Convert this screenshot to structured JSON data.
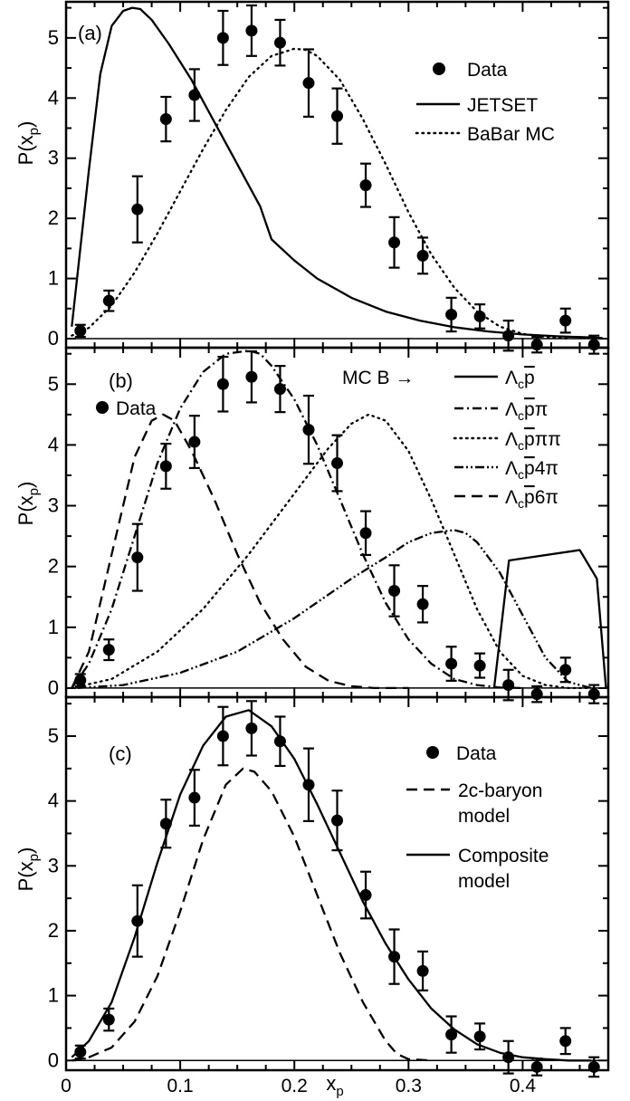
{
  "chart_data": [
    {
      "panel": "(a)",
      "type": "scatter",
      "ylabel": "P(x_p)",
      "xlim": [
        0,
        0.475
      ],
      "ylim": [
        -0.15,
        5.6
      ],
      "yticks": [
        "0",
        "1",
        "2",
        "3",
        "4",
        "5"
      ],
      "data": {
        "name": "Data",
        "x": [
          0.0125,
          0.0375,
          0.0625,
          0.0875,
          0.1125,
          0.1375,
          0.1625,
          0.1875,
          0.2125,
          0.2375,
          0.2625,
          0.2875,
          0.3125,
          0.3375,
          0.3625,
          0.3875,
          0.4125,
          0.4375,
          0.4625
        ],
        "y": [
          0.13,
          0.63,
          2.15,
          3.65,
          4.05,
          5.0,
          5.12,
          4.92,
          4.25,
          3.7,
          2.55,
          1.6,
          1.38,
          0.4,
          0.37,
          0.05,
          -0.1,
          0.3,
          -0.1
        ],
        "err": [
          0.1,
          0.17,
          0.55,
          0.37,
          0.43,
          0.45,
          0.42,
          0.38,
          0.56,
          0.46,
          0.36,
          0.42,
          0.3,
          0.28,
          0.2,
          0.25,
          0.13,
          0.2,
          0.15
        ]
      },
      "series": [
        {
          "name": "JETSET",
          "style": "solid",
          "x": [
            0.005,
            0.02,
            0.03,
            0.04,
            0.05,
            0.058,
            0.065,
            0.075,
            0.09,
            0.11,
            0.13,
            0.15,
            0.17,
            0.18,
            0.2,
            0.22,
            0.25,
            0.28,
            0.31,
            0.34,
            0.37,
            0.4,
            0.43,
            0.46,
            0.47
          ],
          "y": [
            0.2,
            2.8,
            4.4,
            5.2,
            5.45,
            5.5,
            5.48,
            5.3,
            4.9,
            4.3,
            3.6,
            2.9,
            2.2,
            1.65,
            1.3,
            1.0,
            0.68,
            0.45,
            0.3,
            0.19,
            0.12,
            0.07,
            0.04,
            0.02,
            0.01
          ]
        },
        {
          "name": "BaBar MC",
          "style": "dotted",
          "x": [
            0.005,
            0.02,
            0.04,
            0.06,
            0.08,
            0.1,
            0.12,
            0.14,
            0.16,
            0.18,
            0.2,
            0.21,
            0.22,
            0.24,
            0.26,
            0.28,
            0.3,
            0.32,
            0.34,
            0.36,
            0.38,
            0.4,
            0.42,
            0.44
          ],
          "y": [
            0.05,
            0.18,
            0.55,
            1.1,
            1.75,
            2.45,
            3.15,
            3.8,
            4.35,
            4.7,
            4.82,
            4.8,
            4.7,
            4.3,
            3.65,
            2.9,
            2.1,
            1.4,
            0.85,
            0.45,
            0.2,
            0.08,
            0.03,
            0.0
          ]
        }
      ]
    },
    {
      "panel": "(b)",
      "type": "scatter",
      "ylabel": "P(x_p)",
      "xlim": [
        0,
        0.475
      ],
      "ylim": [
        -0.15,
        5.6
      ],
      "yticks": [
        "0",
        "1",
        "2",
        "3",
        "4",
        "5"
      ],
      "legend_header": "MC B →",
      "data": {
        "name": "Data",
        "x": [
          0.0125,
          0.0375,
          0.0625,
          0.0875,
          0.1125,
          0.1375,
          0.1625,
          0.1875,
          0.2125,
          0.2375,
          0.2625,
          0.2875,
          0.3125,
          0.3375,
          0.3625,
          0.3875,
          0.4125,
          0.4375,
          0.4625
        ],
        "y": [
          0.13,
          0.63,
          2.15,
          3.65,
          4.05,
          5.0,
          5.12,
          4.92,
          4.25,
          3.7,
          2.55,
          1.6,
          1.38,
          0.4,
          0.37,
          0.05,
          -0.1,
          0.3,
          -0.1
        ],
        "err": [
          0.1,
          0.17,
          0.55,
          0.37,
          0.43,
          0.45,
          0.42,
          0.38,
          0.56,
          0.46,
          0.36,
          0.42,
          0.3,
          0.28,
          0.2,
          0.25,
          0.13,
          0.2,
          0.15
        ]
      },
      "series": [
        {
          "name": "Λc p̅",
          "style": "solid",
          "x": [
            0.375,
            0.388,
            0.45,
            0.465,
            0.473
          ],
          "y": [
            0.0,
            2.1,
            2.27,
            1.8,
            0.0
          ]
        },
        {
          "name": "Λc p̅π",
          "style": "dashdot",
          "x": [
            0.005,
            0.02,
            0.04,
            0.06,
            0.08,
            0.1,
            0.12,
            0.14,
            0.16,
            0.17,
            0.18,
            0.2,
            0.22,
            0.24,
            0.26,
            0.28,
            0.3,
            0.32,
            0.34,
            0.36,
            0.38,
            0.4
          ],
          "y": [
            0.0,
            0.4,
            1.3,
            2.5,
            3.7,
            4.6,
            5.2,
            5.5,
            5.55,
            5.5,
            5.3,
            4.75,
            4.0,
            3.1,
            2.2,
            1.4,
            0.8,
            0.4,
            0.15,
            0.05,
            0.01,
            0.0
          ]
        },
        {
          "name": "Λc p̅ππ",
          "style": "dotted",
          "x": [
            0.005,
            0.04,
            0.08,
            0.12,
            0.16,
            0.2,
            0.23,
            0.25,
            0.265,
            0.28,
            0.3,
            0.32,
            0.34,
            0.36,
            0.38,
            0.4,
            0.42,
            0.44,
            0.46
          ],
          "y": [
            0.0,
            0.15,
            0.6,
            1.3,
            2.2,
            3.2,
            3.95,
            4.35,
            4.5,
            4.4,
            3.9,
            3.1,
            2.2,
            1.3,
            0.6,
            0.2,
            0.05,
            0.0,
            0.0
          ]
        },
        {
          "name": "Λc p̅ 4π",
          "style": "dashdotdot",
          "x": [
            0.01,
            0.05,
            0.1,
            0.15,
            0.2,
            0.25,
            0.28,
            0.3,
            0.32,
            0.34,
            0.35,
            0.36,
            0.38,
            0.4,
            0.42,
            0.44,
            0.46
          ],
          "y": [
            0.0,
            0.05,
            0.25,
            0.6,
            1.15,
            1.8,
            2.15,
            2.4,
            2.55,
            2.6,
            2.55,
            2.4,
            1.9,
            1.2,
            0.5,
            0.1,
            0.0
          ]
        },
        {
          "name": "Λc p̅ 6π",
          "style": "dashed",
          "x": [
            0.005,
            0.02,
            0.04,
            0.06,
            0.075,
            0.085,
            0.095,
            0.11,
            0.13,
            0.15,
            0.17,
            0.19,
            0.21,
            0.23,
            0.25,
            0.27,
            0.3
          ],
          "y": [
            0.0,
            0.6,
            2.2,
            3.8,
            4.4,
            4.5,
            4.4,
            3.9,
            3.1,
            2.2,
            1.4,
            0.8,
            0.35,
            0.12,
            0.03,
            0.0,
            0.0
          ]
        }
      ]
    },
    {
      "panel": "(c)",
      "type": "scatter",
      "ylabel": "P(x_p)",
      "xlabel": "x_p",
      "xlim": [
        0,
        0.475
      ],
      "ylim": [
        -0.15,
        5.6
      ],
      "yticks": [
        "0",
        "1",
        "2",
        "3",
        "4",
        "5"
      ],
      "xticks": [
        "0",
        "0.1",
        "0.2",
        "0.3",
        "0.4"
      ],
      "data": {
        "name": "Data",
        "x": [
          0.0125,
          0.0375,
          0.0625,
          0.0875,
          0.1125,
          0.1375,
          0.1625,
          0.1875,
          0.2125,
          0.2375,
          0.2625,
          0.2875,
          0.3125,
          0.3375,
          0.3625,
          0.3875,
          0.4125,
          0.4375,
          0.4625
        ],
        "y": [
          0.13,
          0.63,
          2.15,
          3.65,
          4.05,
          5.0,
          5.12,
          4.92,
          4.25,
          3.7,
          2.55,
          1.6,
          1.38,
          0.4,
          0.37,
          0.05,
          -0.1,
          0.3,
          -0.1
        ],
        "err": [
          0.1,
          0.17,
          0.55,
          0.37,
          0.43,
          0.45,
          0.42,
          0.38,
          0.56,
          0.46,
          0.36,
          0.42,
          0.3,
          0.28,
          0.2,
          0.25,
          0.13,
          0.2,
          0.15
        ]
      },
      "series": [
        {
          "name": "2c-baryon model",
          "style": "dashed",
          "x": [
            0.005,
            0.02,
            0.04,
            0.06,
            0.08,
            0.1,
            0.12,
            0.14,
            0.155,
            0.165,
            0.18,
            0.2,
            0.22,
            0.24,
            0.26,
            0.28,
            0.29,
            0.3,
            0.32
          ],
          "y": [
            0.0,
            0.05,
            0.2,
            0.6,
            1.3,
            2.3,
            3.4,
            4.25,
            4.5,
            4.45,
            4.15,
            3.45,
            2.55,
            1.65,
            0.9,
            0.3,
            0.1,
            0.02,
            0.0
          ]
        },
        {
          "name": "Composite model",
          "style": "solid",
          "x": [
            0.005,
            0.02,
            0.04,
            0.06,
            0.08,
            0.1,
            0.12,
            0.14,
            0.16,
            0.18,
            0.2,
            0.22,
            0.24,
            0.26,
            0.28,
            0.3,
            0.32,
            0.34,
            0.36,
            0.38,
            0.4,
            0.42,
            0.44,
            0.46
          ],
          "y": [
            0.05,
            0.3,
            0.9,
            1.9,
            3.05,
            4.1,
            4.85,
            5.3,
            5.4,
            5.15,
            4.65,
            3.95,
            3.2,
            2.45,
            1.8,
            1.25,
            0.8,
            0.48,
            0.25,
            0.12,
            0.05,
            0.02,
            0.0,
            0.0
          ]
        }
      ]
    }
  ],
  "legend": {
    "a": {
      "data": "Data",
      "s1": "JETSET",
      "s2": "BaBar MC"
    },
    "b": {
      "data": "Data",
      "header": "MC B →",
      "base": "Λ"
    },
    "c": {
      "data": "Data",
      "s1a": "2c-baryon",
      "s1b": "model",
      "s2a": "Composite",
      "s2b": "model"
    }
  },
  "labels": {
    "panel_a": "(a)",
    "panel_b": "(b)",
    "panel_c": "(c)",
    "ylabel_main": "P(x",
    "ylabel_sub": "p",
    "ylabel_close": ")",
    "xlabel_main": "x",
    "xlabel_sub": "p",
    "sub_c": "c",
    "pbar": "p",
    "pi": "π",
    "pipi": "ππ",
    "four_pi": "4π",
    "six_pi": "6π"
  }
}
